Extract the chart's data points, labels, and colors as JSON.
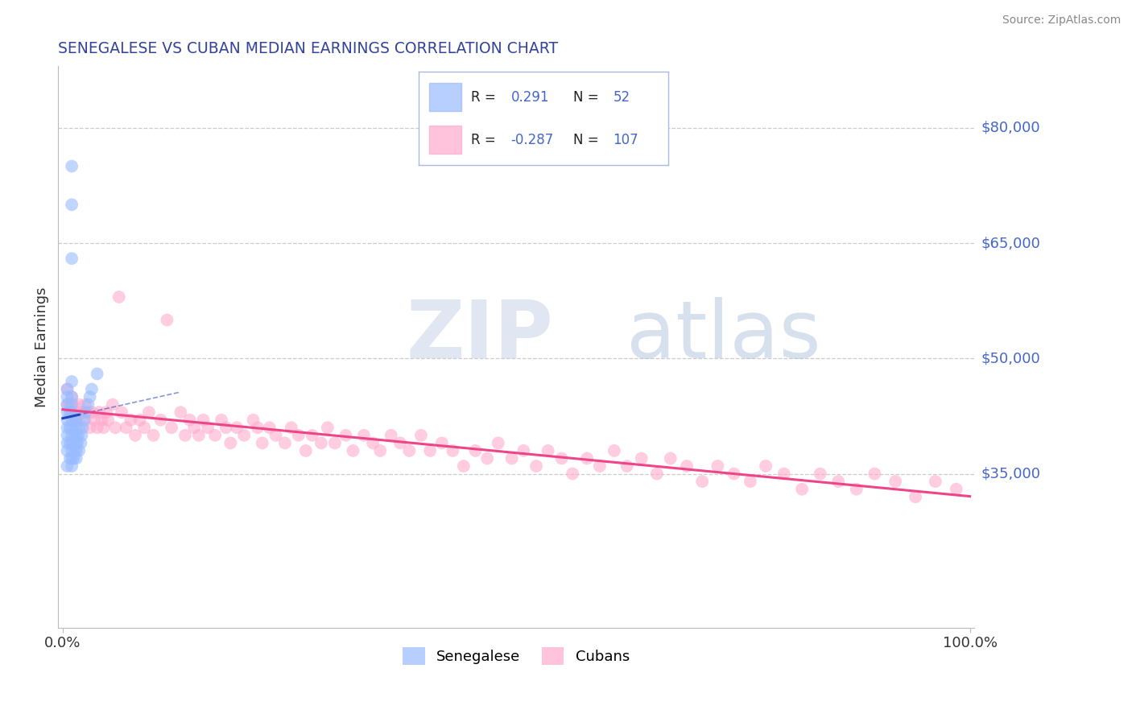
{
  "title": "SENEGALESE VS CUBAN MEDIAN EARNINGS CORRELATION CHART",
  "source": "Source: ZipAtlas.com",
  "ylabel": "Median Earnings",
  "ymin": 15000,
  "ymax": 88000,
  "xmin": -0.005,
  "xmax": 1.005,
  "r_senegalese": 0.291,
  "n_senegalese": 52,
  "r_cuban": -0.287,
  "n_cuban": 107,
  "color_senegalese": "#99bbff",
  "color_cuban": "#ffaacc",
  "color_trendline_senegalese": "#2244bb",
  "color_trendline_cuban": "#ee4488",
  "background_color": "#ffffff",
  "grid_color": "#cccccc",
  "label_color": "#4466cc",
  "watermark_zip_color": "#bbccee",
  "watermark_atlas_color": "#aabbdd",
  "senegalese_x": [
    0.005,
    0.005,
    0.005,
    0.005,
    0.005,
    0.005,
    0.005,
    0.005,
    0.005,
    0.005,
    0.008,
    0.008,
    0.008,
    0.008,
    0.01,
    0.01,
    0.01,
    0.01,
    0.01,
    0.01,
    0.01,
    0.01,
    0.01,
    0.01,
    0.01,
    0.01,
    0.012,
    0.012,
    0.012,
    0.013,
    0.013,
    0.015,
    0.015,
    0.015,
    0.015,
    0.015,
    0.015,
    0.016,
    0.017,
    0.018,
    0.018,
    0.02,
    0.021,
    0.022,
    0.024,
    0.025,
    0.028,
    0.03,
    0.032,
    0.038,
    0.01,
    0.01
  ],
  "senegalese_y": [
    36000,
    38000,
    39000,
    40000,
    41000,
    42000,
    43000,
    44000,
    45000,
    46000,
    37000,
    39000,
    41000,
    43000,
    36000,
    37000,
    38000,
    39000,
    40000,
    41000,
    42000,
    43000,
    44000,
    45000,
    47000,
    63000,
    37000,
    39000,
    42000,
    38000,
    40000,
    37000,
    38000,
    39000,
    40000,
    41000,
    42000,
    39000,
    40000,
    38000,
    41000,
    39000,
    40000,
    41000,
    42000,
    43000,
    44000,
    45000,
    46000,
    48000,
    70000,
    75000
  ],
  "cuban_x": [
    0.005,
    0.005,
    0.008,
    0.01,
    0.01,
    0.012,
    0.015,
    0.015,
    0.018,
    0.02,
    0.022,
    0.025,
    0.028,
    0.03,
    0.032,
    0.035,
    0.038,
    0.04,
    0.043,
    0.045,
    0.048,
    0.05,
    0.055,
    0.058,
    0.062,
    0.065,
    0.07,
    0.075,
    0.08,
    0.085,
    0.09,
    0.095,
    0.1,
    0.108,
    0.115,
    0.12,
    0.13,
    0.135,
    0.14,
    0.145,
    0.15,
    0.155,
    0.16,
    0.168,
    0.175,
    0.18,
    0.185,
    0.192,
    0.2,
    0.21,
    0.215,
    0.22,
    0.228,
    0.235,
    0.245,
    0.252,
    0.26,
    0.268,
    0.275,
    0.285,
    0.292,
    0.3,
    0.312,
    0.32,
    0.332,
    0.342,
    0.35,
    0.362,
    0.372,
    0.382,
    0.395,
    0.405,
    0.418,
    0.43,
    0.442,
    0.455,
    0.468,
    0.48,
    0.495,
    0.508,
    0.522,
    0.535,
    0.55,
    0.562,
    0.578,
    0.592,
    0.608,
    0.622,
    0.638,
    0.655,
    0.67,
    0.688,
    0.705,
    0.722,
    0.74,
    0.758,
    0.775,
    0.795,
    0.815,
    0.835,
    0.855,
    0.875,
    0.895,
    0.918,
    0.94,
    0.962,
    0.985
  ],
  "cuban_y": [
    44000,
    46000,
    44000,
    43000,
    45000,
    44000,
    43000,
    42000,
    44000,
    43000,
    42000,
    44000,
    43000,
    41000,
    43000,
    42000,
    41000,
    43000,
    42000,
    41000,
    43000,
    42000,
    44000,
    41000,
    58000,
    43000,
    41000,
    42000,
    40000,
    42000,
    41000,
    43000,
    40000,
    42000,
    55000,
    41000,
    43000,
    40000,
    42000,
    41000,
    40000,
    42000,
    41000,
    40000,
    42000,
    41000,
    39000,
    41000,
    40000,
    42000,
    41000,
    39000,
    41000,
    40000,
    39000,
    41000,
    40000,
    38000,
    40000,
    39000,
    41000,
    39000,
    40000,
    38000,
    40000,
    39000,
    38000,
    40000,
    39000,
    38000,
    40000,
    38000,
    39000,
    38000,
    36000,
    38000,
    37000,
    39000,
    37000,
    38000,
    36000,
    38000,
    37000,
    35000,
    37000,
    36000,
    38000,
    36000,
    37000,
    35000,
    37000,
    36000,
    34000,
    36000,
    35000,
    34000,
    36000,
    35000,
    33000,
    35000,
    34000,
    33000,
    35000,
    34000,
    32000,
    34000,
    33000
  ]
}
